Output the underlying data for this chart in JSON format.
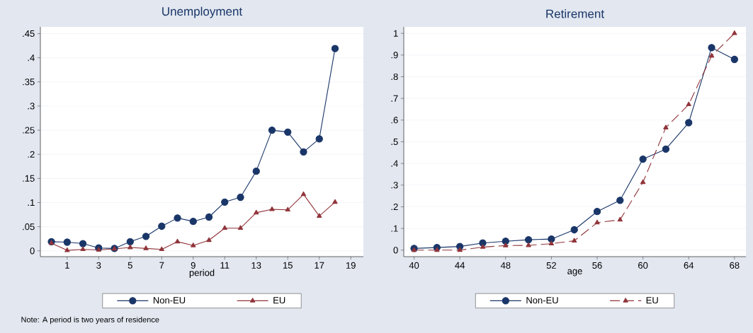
{
  "chart_data": [
    {
      "type": "line",
      "title": "Unemployment",
      "xlabel": "period",
      "x": [
        0,
        1,
        2,
        3,
        4,
        5,
        6,
        7,
        8,
        9,
        10,
        11,
        12,
        13,
        14,
        15,
        16,
        17,
        18
      ],
      "series": [
        {
          "name": "Non-EU",
          "color": "#1a3668",
          "marker": "circle",
          "line_style": "solid",
          "values": [
            0.019,
            0.018,
            0.015,
            0.006,
            0.005,
            0.019,
            0.03,
            0.051,
            0.068,
            0.061,
            0.07,
            0.101,
            0.111,
            0.165,
            0.25,
            0.246,
            0.205,
            0.232,
            0.419
          ]
        },
        {
          "name": "EU",
          "color": "#90353b",
          "marker": "triangle",
          "line_style": "solid",
          "values": [
            0.016,
            0.001,
            0.003,
            0.002,
            0.004,
            0.007,
            0.005,
            0.003,
            0.019,
            0.011,
            0.022,
            0.047,
            0.047,
            0.079,
            0.086,
            0.085,
            0.117,
            0.072,
            0.101
          ]
        }
      ],
      "xlim": [
        -0.7,
        19.8
      ],
      "ylim": [
        -0.012,
        0.464
      ],
      "xticks": [
        1,
        3,
        5,
        7,
        9,
        11,
        13,
        15,
        17,
        19
      ],
      "yticks": [
        0,
        {
          "value": 0.05,
          "label": ".05"
        },
        {
          "value": 0.1,
          "label": ".1"
        },
        {
          "value": 0.15,
          "label": ".15"
        },
        {
          "value": 0.2,
          "label": ".2"
        },
        {
          "value": 0.25,
          "label": ".25"
        },
        {
          "value": 0.3,
          "label": ".3"
        },
        {
          "value": 0.35,
          "label": ".35"
        },
        {
          "value": 0.4,
          "label": ".4"
        },
        {
          "value": 0.45,
          "label": ".45"
        }
      ],
      "grid": "y",
      "legend": "bottom",
      "annotations": [
        "Note: A period is two years of residence"
      ]
    },
    {
      "type": "line",
      "title": "Retirement",
      "xlabel": "age",
      "x": [
        40,
        42,
        44,
        46,
        48,
        50,
        52,
        54,
        56,
        58,
        60,
        62,
        64,
        66,
        68
      ],
      "series": [
        {
          "name": "Non-EU",
          "color": "#1a3668",
          "marker": "circle",
          "line_style": "solid",
          "values": [
            0.008,
            0.012,
            0.017,
            0.033,
            0.041,
            0.048,
            0.051,
            0.094,
            0.178,
            0.23,
            0.42,
            0.466,
            0.588,
            0.934,
            0.88
          ]
        },
        {
          "name": "EU",
          "color": "#90353b",
          "marker": "triangle",
          "line_style": "dashed",
          "values": [
            0.0,
            0.0,
            0.0,
            0.014,
            0.021,
            0.022,
            0.03,
            0.043,
            0.127,
            0.14,
            0.313,
            0.565,
            0.672,
            0.896,
            1.0
          ]
        }
      ],
      "xlim": [
        39.1,
        69.0
      ],
      "ylim": [
        -0.03,
        1.03
      ],
      "xticks": [
        40,
        44,
        48,
        52,
        56,
        60,
        64,
        68
      ],
      "yticks": [
        0,
        {
          "value": 0.1,
          "label": ".1"
        },
        {
          "value": 0.2,
          "label": ".2"
        },
        {
          "value": 0.3,
          "label": ".3"
        },
        {
          "value": 0.4,
          "label": ".4"
        },
        {
          "value": 0.5,
          "label": ".5"
        },
        {
          "value": 0.6,
          "label": ".6"
        },
        {
          "value": 0.7,
          "label": ".7"
        },
        {
          "value": 0.8,
          "label": ".8"
        },
        {
          "value": 0.9,
          "label": ".9"
        },
        1
      ],
      "grid": "y",
      "legend": "bottom"
    }
  ]
}
